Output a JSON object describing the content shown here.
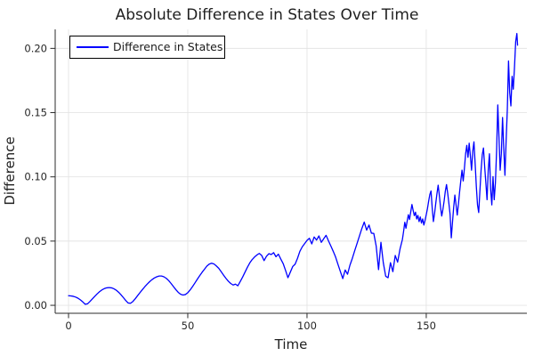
{
  "title": "Absolute Difference in States Over Time",
  "legend": {
    "label": "Difference in States"
  },
  "colors": {
    "line": "#0000ff",
    "grid": "#e4e4e4",
    "spine": "#2b2b2b",
    "background": "#ffffff",
    "legend_border": "#000000",
    "text": "#1f1f1f"
  },
  "chart_data": {
    "type": "line",
    "title": "Absolute Difference in States Over Time",
    "xlabel": "Time",
    "ylabel": "Difference",
    "xlim": [
      -5.6,
      192.2
    ],
    "ylim": [
      -0.0062,
      0.2148
    ],
    "grid": true,
    "legend_position": "top-left",
    "x_ticks": [
      0,
      50,
      100,
      150
    ],
    "x_tick_labels": [
      "0",
      "50",
      "100",
      "150"
    ],
    "y_ticks": [
      0.0,
      0.05,
      0.1,
      0.15,
      0.2
    ],
    "y_tick_labels": [
      "0.00",
      "0.05",
      "0.10",
      "0.15",
      "0.20"
    ],
    "series": [
      {
        "name": "Difference in States",
        "color": "#0000ff",
        "points": [
          [
            0,
            0.0075
          ],
          [
            1,
            0.0073
          ],
          [
            2,
            0.007
          ],
          [
            3,
            0.0064
          ],
          [
            4,
            0.0055
          ],
          [
            5,
            0.0042
          ],
          [
            6,
            0.0026
          ],
          [
            7,
            0.0008
          ],
          [
            8,
            0.0012
          ],
          [
            9,
            0.003
          ],
          [
            10,
            0.005
          ],
          [
            11,
            0.007
          ],
          [
            12,
            0.0089
          ],
          [
            13,
            0.0106
          ],
          [
            14,
            0.012
          ],
          [
            15,
            0.013
          ],
          [
            16,
            0.0136
          ],
          [
            17,
            0.0138
          ],
          [
            18,
            0.0136
          ],
          [
            19,
            0.0129
          ],
          [
            20,
            0.0118
          ],
          [
            21,
            0.0102
          ],
          [
            22,
            0.0082
          ],
          [
            23,
            0.006
          ],
          [
            24,
            0.0037
          ],
          [
            25,
            0.0018
          ],
          [
            26,
            0.0016
          ],
          [
            27,
            0.003
          ],
          [
            28,
            0.0052
          ],
          [
            29,
            0.0076
          ],
          [
            30,
            0.01
          ],
          [
            31,
            0.0123
          ],
          [
            32,
            0.0145
          ],
          [
            33,
            0.0165
          ],
          [
            34,
            0.0184
          ],
          [
            35,
            0.02
          ],
          [
            36,
            0.0213
          ],
          [
            37,
            0.0222
          ],
          [
            38,
            0.0228
          ],
          [
            39,
            0.0228
          ],
          [
            40,
            0.0222
          ],
          [
            41,
            0.021
          ],
          [
            42,
            0.0192
          ],
          [
            43,
            0.017
          ],
          [
            44,
            0.0146
          ],
          [
            45,
            0.0122
          ],
          [
            46,
            0.0101
          ],
          [
            47,
            0.0086
          ],
          [
            48,
            0.008
          ],
          [
            49,
            0.0084
          ],
          [
            50,
            0.0098
          ],
          [
            51,
            0.012
          ],
          [
            52,
            0.0146
          ],
          [
            53,
            0.0174
          ],
          [
            54,
            0.0203
          ],
          [
            55,
            0.0231
          ],
          [
            56,
            0.0257
          ],
          [
            57,
            0.0281
          ],
          [
            58,
            0.0305
          ],
          [
            59,
            0.0321
          ],
          [
            60,
            0.0328
          ],
          [
            61,
            0.0322
          ],
          [
            62,
            0.0306
          ],
          [
            63,
            0.0288
          ],
          [
            64,
            0.0262
          ],
          [
            65,
            0.0235
          ],
          [
            66,
            0.021
          ],
          [
            67,
            0.0188
          ],
          [
            68,
            0.017
          ],
          [
            69,
            0.0158
          ],
          [
            70,
            0.0165
          ],
          [
            71,
            0.0152
          ],
          [
            72,
            0.0185
          ],
          [
            73,
            0.022
          ],
          [
            74,
            0.0258
          ],
          [
            75,
            0.0296
          ],
          [
            76,
            0.033
          ],
          [
            77,
            0.0356
          ],
          [
            78,
            0.0376
          ],
          [
            79,
            0.0392
          ],
          [
            80,
            0.0404
          ],
          [
            81,
            0.0388
          ],
          [
            82,
            0.0348
          ],
          [
            83,
            0.0382
          ],
          [
            84,
            0.0402
          ],
          [
            85,
            0.0395
          ],
          [
            86,
            0.041
          ],
          [
            87,
            0.0378
          ],
          [
            88,
            0.0398
          ],
          [
            89,
            0.036
          ],
          [
            90,
            0.0325
          ],
          [
            91,
            0.0272
          ],
          [
            92,
            0.0215
          ],
          [
            93,
            0.0258
          ],
          [
            94,
            0.0302
          ],
          [
            95,
            0.032
          ],
          [
            96,
            0.0365
          ],
          [
            97,
            0.042
          ],
          [
            98,
            0.0455
          ],
          [
            99,
            0.048
          ],
          [
            100,
            0.0505
          ],
          [
            101,
            0.0522
          ],
          [
            102,
            0.0478
          ],
          [
            103,
            0.0532
          ],
          [
            104,
            0.0508
          ],
          [
            105,
            0.054
          ],
          [
            106,
            0.049
          ],
          [
            107,
            0.0518
          ],
          [
            108,
            0.0545
          ],
          [
            109,
            0.0502
          ],
          [
            110,
            0.0462
          ],
          [
            111,
            0.042
          ],
          [
            112,
            0.0375
          ],
          [
            113,
            0.0318
          ],
          [
            114,
            0.0262
          ],
          [
            115,
            0.0208
          ],
          [
            116,
            0.0275
          ],
          [
            117,
            0.0242
          ],
          [
            118,
            0.0312
          ],
          [
            119,
            0.0365
          ],
          [
            120,
            0.0425
          ],
          [
            121,
            0.0482
          ],
          [
            122,
            0.054
          ],
          [
            123,
            0.0598
          ],
          [
            124,
            0.0648
          ],
          [
            125,
            0.0585
          ],
          [
            126,
            0.0625
          ],
          [
            127,
            0.0562
          ],
          [
            128,
            0.056
          ],
          [
            129,
            0.0462
          ],
          [
            130,
            0.0278
          ],
          [
            131,
            0.049
          ],
          [
            132,
            0.033
          ],
          [
            133,
            0.0226
          ],
          [
            134,
            0.0215
          ],
          [
            135,
            0.0332
          ],
          [
            136,
            0.0262
          ],
          [
            137,
            0.0388
          ],
          [
            138,
            0.0336
          ],
          [
            139,
            0.0438
          ],
          [
            140,
            0.0512
          ],
          [
            140.5,
            0.0575
          ],
          [
            141,
            0.0646
          ],
          [
            141.5,
            0.06
          ],
          [
            142,
            0.0655
          ],
          [
            142.5,
            0.0705
          ],
          [
            143,
            0.0668
          ],
          [
            143.5,
            0.0728
          ],
          [
            144,
            0.0785
          ],
          [
            144.5,
            0.074
          ],
          [
            145,
            0.0698
          ],
          [
            145.5,
            0.0725
          ],
          [
            146,
            0.0672
          ],
          [
            146.5,
            0.07
          ],
          [
            147,
            0.0652
          ],
          [
            147.5,
            0.0688
          ],
          [
            148,
            0.064
          ],
          [
            148.5,
            0.0672
          ],
          [
            149,
            0.0625
          ],
          [
            149.5,
            0.0662
          ],
          [
            150,
            0.0705
          ],
          [
            150.5,
            0.0752
          ],
          [
            151,
            0.081
          ],
          [
            151.5,
            0.0862
          ],
          [
            152,
            0.089
          ],
          [
            152.5,
            0.0758
          ],
          [
            153,
            0.0652
          ],
          [
            153.5,
            0.0715
          ],
          [
            154,
            0.0795
          ],
          [
            154.5,
            0.087
          ],
          [
            155,
            0.0935
          ],
          [
            155.5,
            0.0855
          ],
          [
            156,
            0.0762
          ],
          [
            156.5,
            0.0695
          ],
          [
            157,
            0.0748
          ],
          [
            157.5,
            0.0812
          ],
          [
            158,
            0.0888
          ],
          [
            158.5,
            0.094
          ],
          [
            159,
            0.0872
          ],
          [
            159.5,
            0.0792
          ],
          [
            160,
            0.0708
          ],
          [
            160.5,
            0.0525
          ],
          [
            161,
            0.0645
          ],
          [
            161.5,
            0.0762
          ],
          [
            162,
            0.0858
          ],
          [
            162.5,
            0.0782
          ],
          [
            163,
            0.0702
          ],
          [
            163.5,
            0.0788
          ],
          [
            164,
            0.0885
          ],
          [
            164.5,
            0.0972
          ],
          [
            165,
            0.1052
          ],
          [
            165.5,
            0.0968
          ],
          [
            166,
            0.1065
          ],
          [
            166.5,
            0.1178
          ],
          [
            167,
            0.1245
          ],
          [
            167.5,
            0.1152
          ],
          [
            168,
            0.1262
          ],
          [
            168.5,
            0.1165
          ],
          [
            169,
            0.1052
          ],
          [
            169.5,
            0.1198
          ],
          [
            170,
            0.1272
          ],
          [
            170.5,
            0.1105
          ],
          [
            171,
            0.0925
          ],
          [
            171.5,
            0.0782
          ],
          [
            172,
            0.0722
          ],
          [
            172.5,
            0.0888
          ],
          [
            173,
            0.1052
          ],
          [
            173.5,
            0.1172
          ],
          [
            174,
            0.1225
          ],
          [
            174.5,
            0.108
          ],
          [
            175,
            0.0952
          ],
          [
            175.5,
            0.0822
          ],
          [
            176,
            0.1052
          ],
          [
            176.5,
            0.118
          ],
          [
            177,
            0.0905
          ],
          [
            177.5,
            0.0782
          ],
          [
            178,
            0.1002
          ],
          [
            178.5,
            0.0822
          ],
          [
            179,
            0.0952
          ],
          [
            179.5,
            0.1202
          ],
          [
            180,
            0.156
          ],
          [
            180.5,
            0.1305
          ],
          [
            181,
            0.1052
          ],
          [
            181.5,
            0.1182
          ],
          [
            182,
            0.1462
          ],
          [
            182.5,
            0.1222
          ],
          [
            183,
            0.1012
          ],
          [
            183.5,
            0.1282
          ],
          [
            184,
            0.1525
          ],
          [
            184.5,
            0.1902
          ],
          [
            185,
            0.1655
          ],
          [
            185.5,
            0.1552
          ],
          [
            186,
            0.1782
          ],
          [
            186.5,
            0.1682
          ],
          [
            187,
            0.1852
          ],
          [
            187.5,
            0.2052
          ],
          [
            188,
            0.2116
          ],
          [
            188.3,
            0.2025
          ]
        ]
      }
    ]
  }
}
